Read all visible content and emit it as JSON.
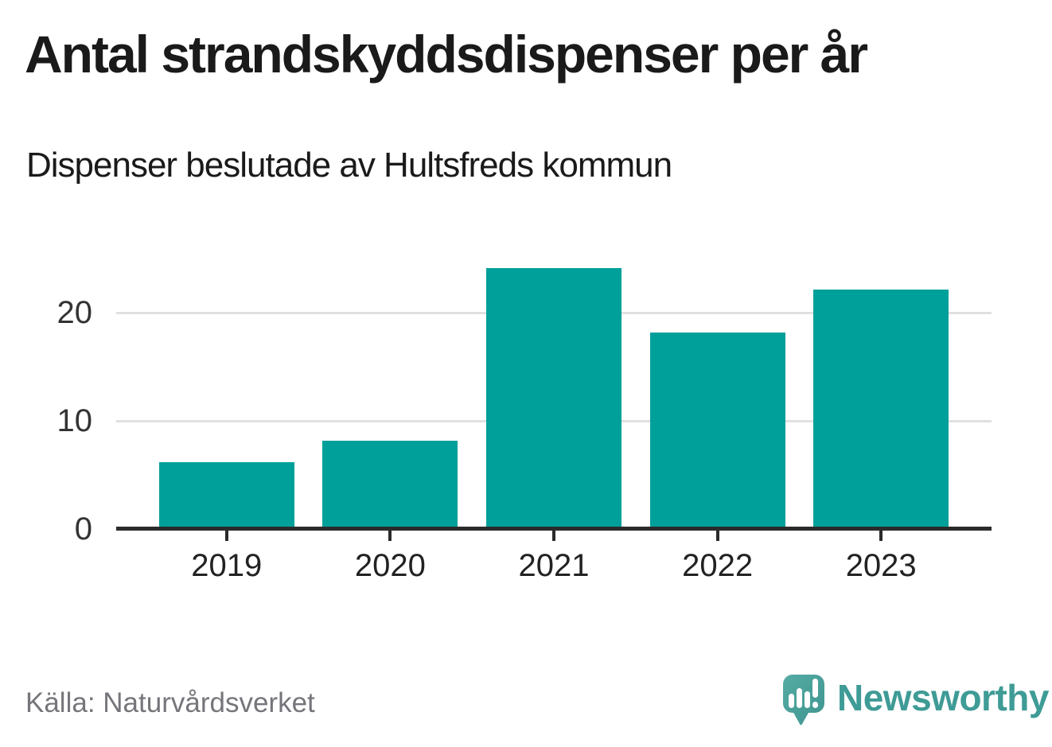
{
  "header": {
    "title": "Antal strandskyddsdispenser per år",
    "subtitle": "Dispenser beslutade av Hultsfreds kommun"
  },
  "footer": {
    "source": "Källa: Naturvårdsverket",
    "brand": "Newsworthy"
  },
  "icons": {
    "brand_logo": "newsworthy-speech-bubble-bar-chart-icon"
  },
  "colors": {
    "bar": "#00a09a",
    "brand_teal": "#3f9b96",
    "grid": "#e0e0e0",
    "axis": "#2b2b2b",
    "text": "#1a1a1a",
    "muted_text": "#76757b"
  },
  "chart_data": {
    "type": "bar",
    "title": "Antal strandskyddsdispenser per år",
    "subtitle": "Dispenser beslutade av Hultsfreds kommun",
    "source": "Källa: Naturvårdsverket",
    "categories": [
      "2019",
      "2020",
      "2021",
      "2022",
      "2023"
    ],
    "values": [
      6,
      8,
      24,
      18,
      22
    ],
    "xlabel": "",
    "ylabel": "",
    "yticks": [
      0,
      10,
      20
    ],
    "ylim": [
      0,
      25
    ],
    "grid": "horizontal",
    "legend": "none",
    "bar_color": "#00a09a"
  }
}
